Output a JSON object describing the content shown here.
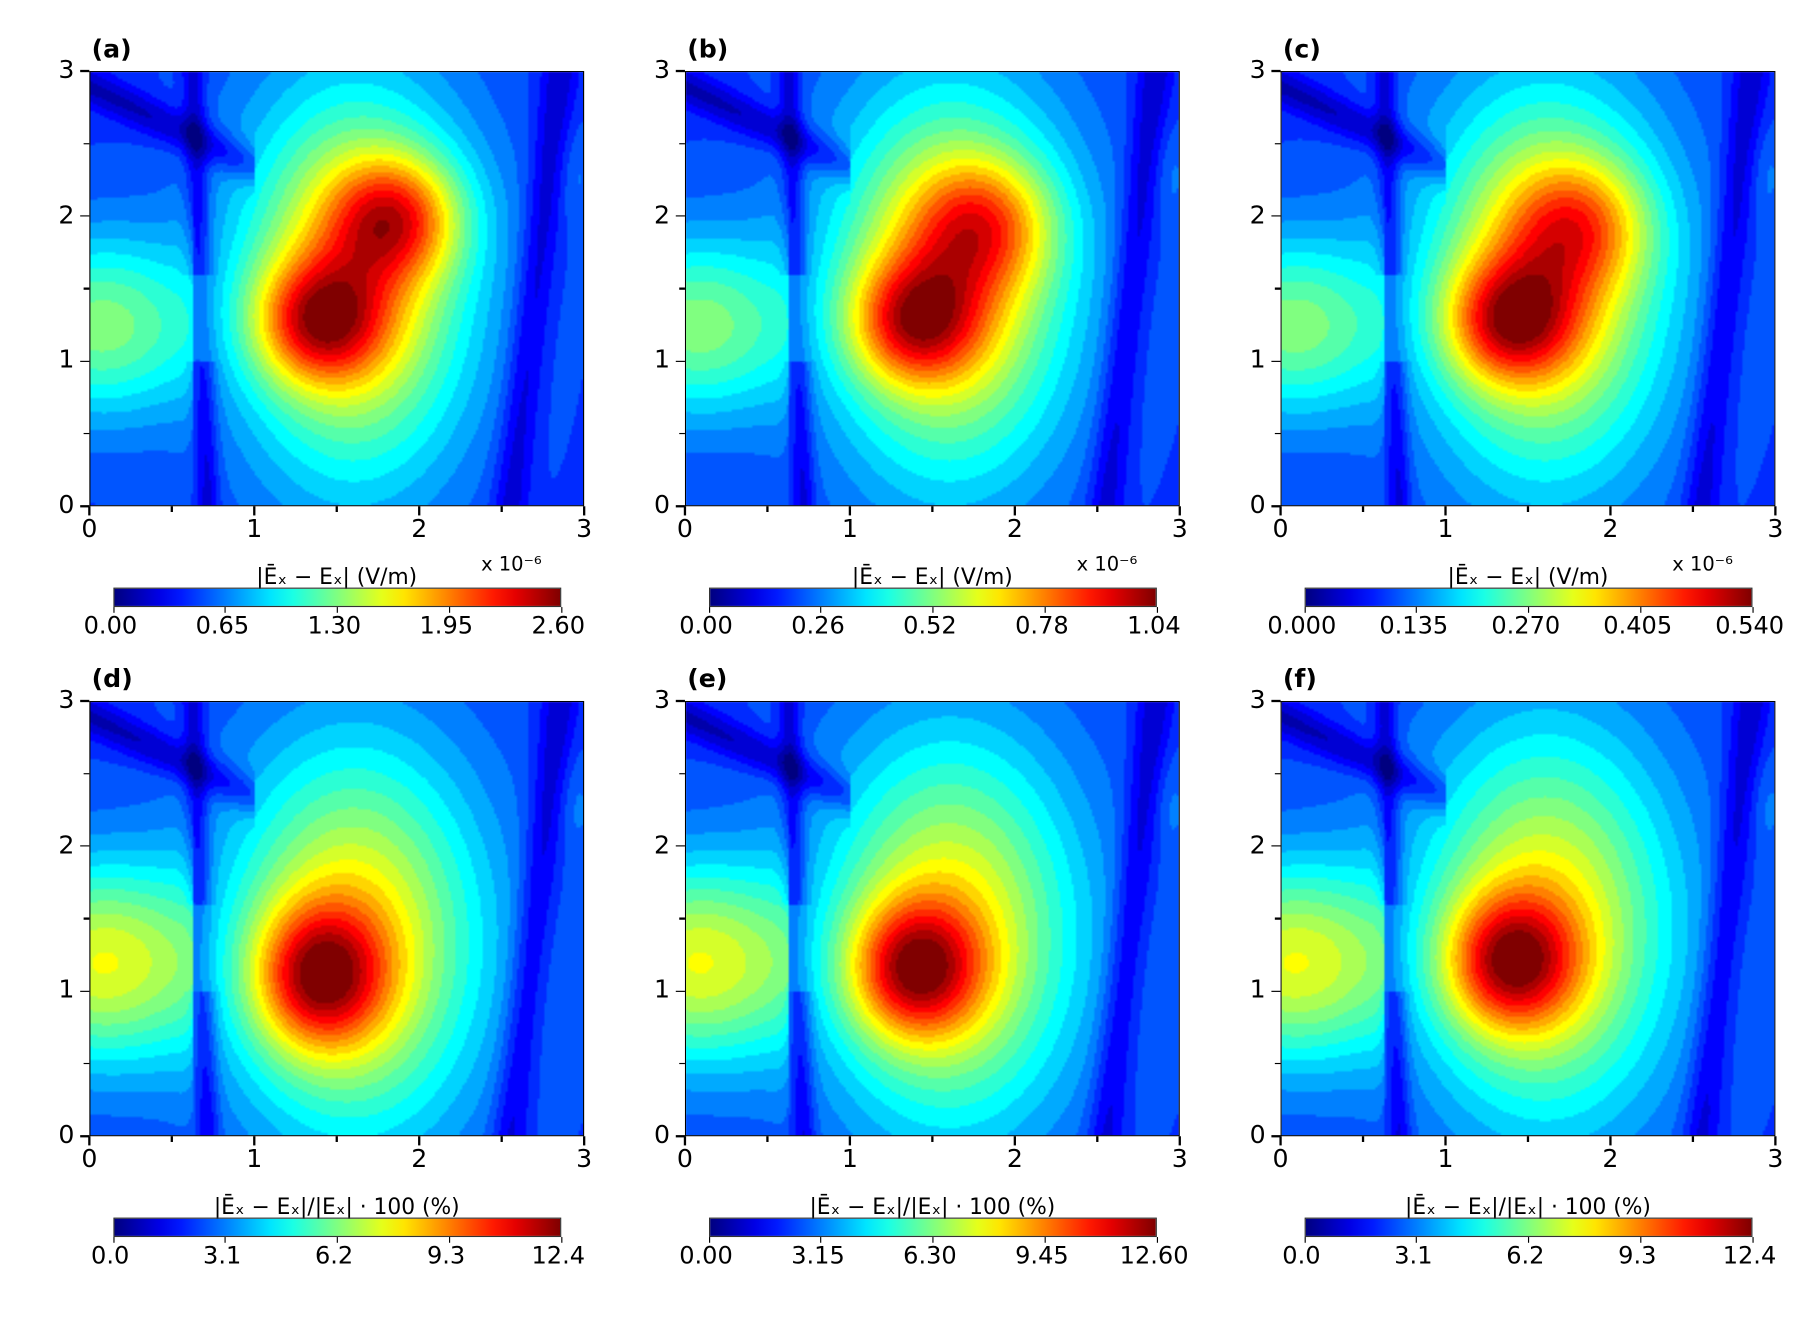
{
  "chart_data": [
    {
      "id": "a",
      "type": "heatmap",
      "label": "(a)",
      "xlim": [
        0,
        3
      ],
      "ylim": [
        0,
        3
      ],
      "xticks": [
        "0",
        "1",
        "2",
        "3"
      ],
      "yticks": [
        "0",
        "1",
        "2",
        "3"
      ],
      "colorbar": {
        "label": "|Ēₓ − Eₓ| (V/m)",
        "multiplier": "x 10⁻⁶",
        "ticks": [
          "0.00",
          "0.65",
          "1.30",
          "1.95",
          "2.60"
        ],
        "range": [
          0,
          2.6
        ],
        "cmap": "jet"
      },
      "features": [
        {
          "x": 1.6,
          "y": 1.55,
          "sx": 0.5,
          "sy": 0.95,
          "amp": 0.5
        },
        {
          "x": 1.38,
          "y": 1.28,
          "sx": 0.28,
          "sy": 0.3,
          "amp": 0.42
        },
        {
          "x": 1.85,
          "y": 2.0,
          "sx": 0.28,
          "sy": 0.3,
          "amp": 0.38
        },
        {
          "x": 0.05,
          "y": 1.25,
          "sx": 0.45,
          "sy": 0.45,
          "amp": 0.32
        }
      ]
    },
    {
      "id": "b",
      "type": "heatmap",
      "label": "(b)",
      "xlim": [
        0,
        3
      ],
      "ylim": [
        0,
        3
      ],
      "xticks": [
        "0",
        "1",
        "2",
        "3"
      ],
      "yticks": [
        "0",
        "1",
        "2",
        "3"
      ],
      "colorbar": {
        "label": "|Ēₓ − Eₓ| (V/m)",
        "multiplier": "x 10⁻⁶",
        "ticks": [
          "0.00",
          "0.26",
          "0.52",
          "0.78",
          "1.04"
        ],
        "range": [
          0,
          1.04
        ],
        "cmap": "jet"
      },
      "features": [
        {
          "x": 1.6,
          "y": 1.55,
          "sx": 0.52,
          "sy": 0.95,
          "amp": 0.5
        },
        {
          "x": 1.38,
          "y": 1.28,
          "sx": 0.28,
          "sy": 0.3,
          "amp": 0.4
        },
        {
          "x": 1.8,
          "y": 1.95,
          "sx": 0.3,
          "sy": 0.32,
          "amp": 0.3
        },
        {
          "x": 0.05,
          "y": 1.25,
          "sx": 0.45,
          "sy": 0.45,
          "amp": 0.32
        }
      ]
    },
    {
      "id": "c",
      "type": "heatmap",
      "label": "(c)",
      "xlim": [
        0,
        3
      ],
      "ylim": [
        0,
        3
      ],
      "xticks": [
        "0",
        "1",
        "2",
        "3"
      ],
      "yticks": [
        "0",
        "1",
        "2",
        "3"
      ],
      "colorbar": {
        "label": "|Ēₓ − Eₓ| (V/m)",
        "multiplier": "x 10⁻⁶",
        "ticks": [
          "0.000",
          "0.135",
          "0.270",
          "0.405",
          "0.540"
        ],
        "range": [
          0,
          0.54
        ],
        "cmap": "jet"
      },
      "features": [
        {
          "x": 1.6,
          "y": 1.55,
          "sx": 0.52,
          "sy": 0.95,
          "amp": 0.5
        },
        {
          "x": 1.38,
          "y": 1.28,
          "sx": 0.28,
          "sy": 0.3,
          "amp": 0.42
        },
        {
          "x": 1.8,
          "y": 1.95,
          "sx": 0.3,
          "sy": 0.32,
          "amp": 0.28
        },
        {
          "x": 0.05,
          "y": 1.25,
          "sx": 0.45,
          "sy": 0.45,
          "amp": 0.32
        }
      ]
    },
    {
      "id": "d",
      "type": "heatmap",
      "label": "(d)",
      "xlim": [
        0,
        3
      ],
      "ylim": [
        0,
        3
      ],
      "xticks": [
        "0",
        "1",
        "2",
        "3"
      ],
      "yticks": [
        "0",
        "1",
        "2",
        "3"
      ],
      "colorbar": {
        "label": "|Ēₓ − Eₓ|/|Eₓ| · 100 (%)",
        "multiplier": "",
        "ticks": [
          "0.0",
          "3.1",
          "6.2",
          "9.3",
          "12.4"
        ],
        "range": [
          0,
          12.4
        ],
        "cmap": "jet"
      },
      "features": [
        {
          "x": 1.6,
          "y": 1.35,
          "sx": 0.55,
          "sy": 0.95,
          "amp": 0.48
        },
        {
          "x": 1.38,
          "y": 1.1,
          "sx": 0.28,
          "sy": 0.35,
          "amp": 0.45
        },
        {
          "x": 0.05,
          "y": 1.2,
          "sx": 0.5,
          "sy": 0.5,
          "amp": 0.42
        }
      ]
    },
    {
      "id": "e",
      "type": "heatmap",
      "label": "(e)",
      "xlim": [
        0,
        3
      ],
      "ylim": [
        0,
        3
      ],
      "xticks": [
        "0",
        "1",
        "2",
        "3"
      ],
      "yticks": [
        "0",
        "1",
        "2",
        "3"
      ],
      "colorbar": {
        "label": "|Ēₓ − Eₓ|/|Eₓ| · 100 (%)",
        "multiplier": "",
        "ticks": [
          "0.00",
          "3.15",
          "6.30",
          "9.45",
          "12.60"
        ],
        "range": [
          0,
          12.6
        ],
        "cmap": "jet"
      },
      "features": [
        {
          "x": 1.6,
          "y": 1.4,
          "sx": 0.55,
          "sy": 0.95,
          "amp": 0.47
        },
        {
          "x": 1.38,
          "y": 1.15,
          "sx": 0.28,
          "sy": 0.33,
          "amp": 0.45
        },
        {
          "x": 0.05,
          "y": 1.2,
          "sx": 0.5,
          "sy": 0.5,
          "amp": 0.42
        }
      ]
    },
    {
      "id": "f",
      "type": "heatmap",
      "label": "(f)",
      "xlim": [
        0,
        3
      ],
      "ylim": [
        0,
        3
      ],
      "xticks": [
        "0",
        "1",
        "2",
        "3"
      ],
      "yticks": [
        "0",
        "1",
        "2",
        "3"
      ],
      "colorbar": {
        "label": "|Ēₓ − Eₓ|/|Eₓ| · 100 (%)",
        "multiplier": "",
        "ticks": [
          "0.0",
          "3.1",
          "6.2",
          "9.3",
          "12.4"
        ],
        "range": [
          0,
          12.4
        ],
        "cmap": "jet"
      },
      "features": [
        {
          "x": 1.6,
          "y": 1.45,
          "sx": 0.55,
          "sy": 0.95,
          "amp": 0.47
        },
        {
          "x": 1.38,
          "y": 1.2,
          "sx": 0.28,
          "sy": 0.33,
          "amp": 0.45
        },
        {
          "x": 0.05,
          "y": 1.2,
          "sx": 0.5,
          "sy": 0.5,
          "amp": 0.42
        }
      ]
    }
  ]
}
